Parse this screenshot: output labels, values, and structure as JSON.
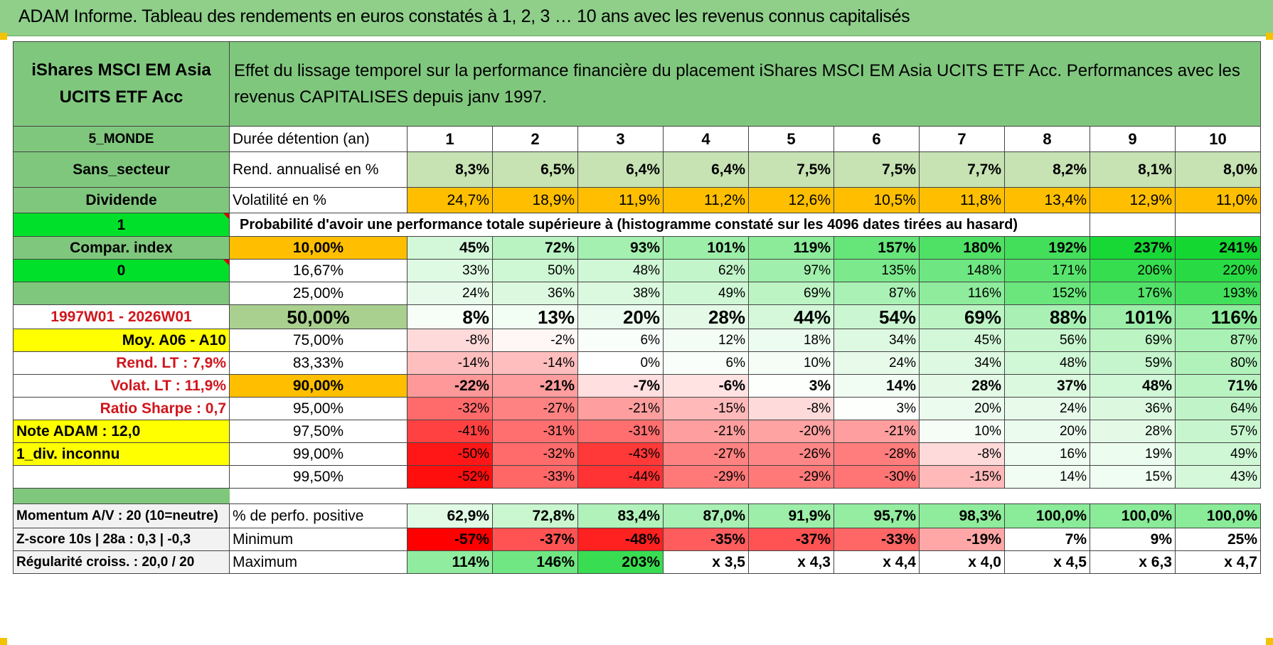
{
  "title": "ADAM Informe. Tableau des rendements en euros constatés à 1, 2, 3 … 10 ans avec les revenus connus capitalisés",
  "fund_name": "iShares MSCI EM Asia UCITS ETF Acc",
  "header_text": "Effet du lissage temporel sur la performance financière du placement iShares MSCI EM Asia UCITS ETF Acc. Performances avec les revenus CAPITALISES depuis janv 1997.",
  "side": {
    "zone": "5_MONDE",
    "secteur": "Sans_secteur",
    "dividende": "Dividende",
    "flag1": "1",
    "compar": "Compar. index",
    "flag0": "0",
    "period": "1997W01 - 2026W01",
    "moy": "Moy. A06 - A10",
    "rend_lt": "Rend. LT :    7,9%",
    "volat_lt": "Volat. LT :    11,9%",
    "sharpe": "Ratio Sharpe :     0,7",
    "note": "Note ADAM : 12,0",
    "div_inconnu": "1_div. inconnu"
  },
  "row_labels": {
    "duree": "Durée détention (an)",
    "rend": "Rend. annualisé en %",
    "vol": "Volatilité en %",
    "proba": "Probabilité d'avoir une performance totale supérieure à (histogramme constaté sur les 4096 dates tirées au hasard)",
    "positive": "% de perfo. positive",
    "minimum": "Minimum",
    "maximum": "Maximum"
  },
  "years": [
    "1",
    "2",
    "3",
    "4",
    "5",
    "6",
    "7",
    "8",
    "9",
    "10"
  ],
  "rend": [
    "8,3%",
    "6,5%",
    "6,4%",
    "6,4%",
    "7,5%",
    "7,5%",
    "7,7%",
    "8,2%",
    "8,1%",
    "8,0%"
  ],
  "vol": [
    "24,7%",
    "18,9%",
    "11,9%",
    "11,2%",
    "12,6%",
    "10,5%",
    "11,8%",
    "13,4%",
    "12,9%",
    "11,0%"
  ],
  "prob_rows": [
    {
      "p": "10,00%",
      "v": [
        "45%",
        "72%",
        "93%",
        "101%",
        "119%",
        "157%",
        "180%",
        "192%",
        "237%",
        "241%"
      ]
    },
    {
      "p": "16,67%",
      "v": [
        "33%",
        "50%",
        "48%",
        "62%",
        "97%",
        "135%",
        "148%",
        "171%",
        "206%",
        "220%"
      ]
    },
    {
      "p": "25,00%",
      "v": [
        "24%",
        "36%",
        "38%",
        "49%",
        "69%",
        "87%",
        "116%",
        "152%",
        "176%",
        "193%"
      ]
    },
    {
      "p": "50,00%",
      "v": [
        "8%",
        "13%",
        "20%",
        "28%",
        "44%",
        "54%",
        "69%",
        "88%",
        "101%",
        "116%"
      ]
    },
    {
      "p": "75,00%",
      "v": [
        "-8%",
        "-2%",
        "6%",
        "12%",
        "18%",
        "34%",
        "45%",
        "56%",
        "69%",
        "87%"
      ]
    },
    {
      "p": "83,33%",
      "v": [
        "-14%",
        "-14%",
        "0%",
        "6%",
        "10%",
        "24%",
        "34%",
        "48%",
        "59%",
        "80%"
      ]
    },
    {
      "p": "90,00%",
      "v": [
        "-22%",
        "-21%",
        "-7%",
        "-6%",
        "3%",
        "14%",
        "28%",
        "37%",
        "48%",
        "71%"
      ]
    },
    {
      "p": "95,00%",
      "v": [
        "-32%",
        "-27%",
        "-21%",
        "-15%",
        "-8%",
        "3%",
        "20%",
        "24%",
        "36%",
        "64%"
      ]
    },
    {
      "p": "97,50%",
      "v": [
        "-41%",
        "-31%",
        "-31%",
        "-21%",
        "-20%",
        "-21%",
        "10%",
        "20%",
        "28%",
        "57%"
      ]
    },
    {
      "p": "99,00%",
      "v": [
        "-50%",
        "-32%",
        "-43%",
        "-27%",
        "-26%",
        "-28%",
        "-8%",
        "16%",
        "19%",
        "49%"
      ]
    },
    {
      "p": "99,50%",
      "v": [
        "-52%",
        "-33%",
        "-44%",
        "-29%",
        "-29%",
        "-30%",
        "-15%",
        "14%",
        "15%",
        "43%"
      ]
    }
  ],
  "bottom": {
    "momentum": "Momentum A/V : 20 (10=neutre)",
    "zscore": "Z-score 10s | 28a : 0,3 | -0,3",
    "regularite": "Régularité croiss. : 20,0 / 20",
    "positive": [
      "62,9%",
      "72,8%",
      "83,4%",
      "87,0%",
      "91,9%",
      "95,7%",
      "98,3%",
      "100,0%",
      "100,0%",
      "100,0%"
    ],
    "minimum": [
      "-57%",
      "-37%",
      "-48%",
      "-35%",
      "-37%",
      "-33%",
      "-19%",
      "7%",
      "9%",
      "25%"
    ],
    "maximum": [
      "114%",
      "146%",
      "203%",
      "x 3,5",
      "x 4,3",
      "x 4,4",
      "x 4,0",
      "x 4,5",
      "x 6,3",
      "x 4,7"
    ]
  },
  "colors": {
    "header_green": "#80c77e",
    "positive_max": "#00d22a",
    "negative_max": "#ff0000",
    "orange": "#ffbf00",
    "yellow": "#ffff00"
  }
}
